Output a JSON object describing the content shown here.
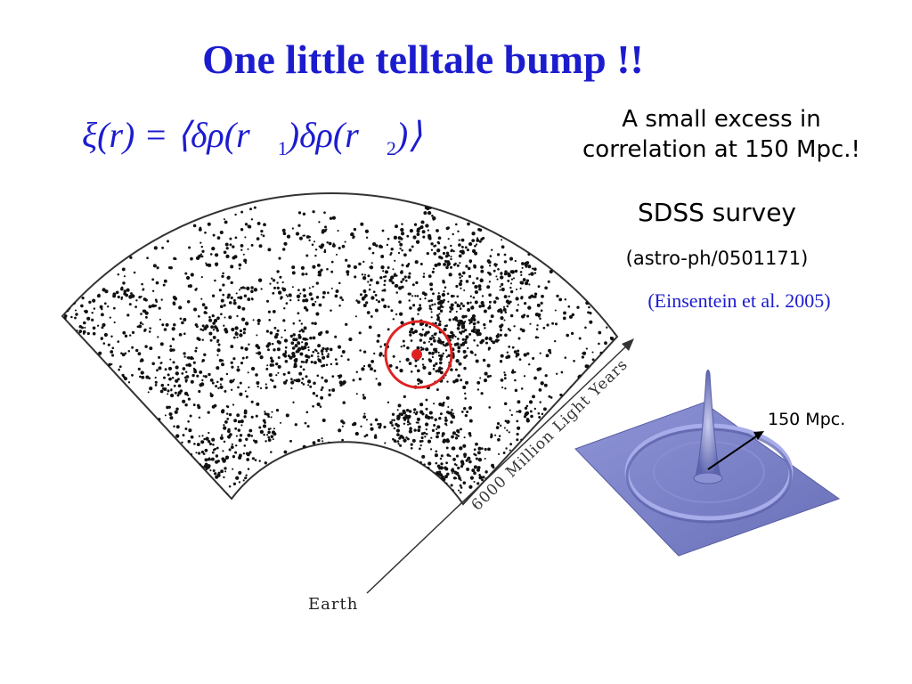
{
  "title": "One little telltale bump !!",
  "equation": {
    "lhs": "ξ(r) =",
    "bra": "⟨",
    "term1": "δρ(",
    "r1": "r⃗",
    "sub1": "1",
    "close1": ")",
    "term2": "δρ(",
    "r2": "r⃗",
    "sub2": "2",
    "close2": ")",
    "ket": "⟩"
  },
  "text_excess_line1": "A small excess in",
  "text_excess_line2": "correlation at 150 Mpc.!",
  "text_sdss": "SDSS survey",
  "text_arxiv": "(astro-ph/0501171)",
  "text_reference": "(Einsentein et al. 2005)",
  "wedge_axis_label": "6000 Million Light Years",
  "earth_label": "Earth",
  "bump_label": "150 Mpc.",
  "colors": {
    "title_blue": "#1c1ccf",
    "circle_red": "#e02020",
    "surface_blue": "#7b82c8"
  }
}
